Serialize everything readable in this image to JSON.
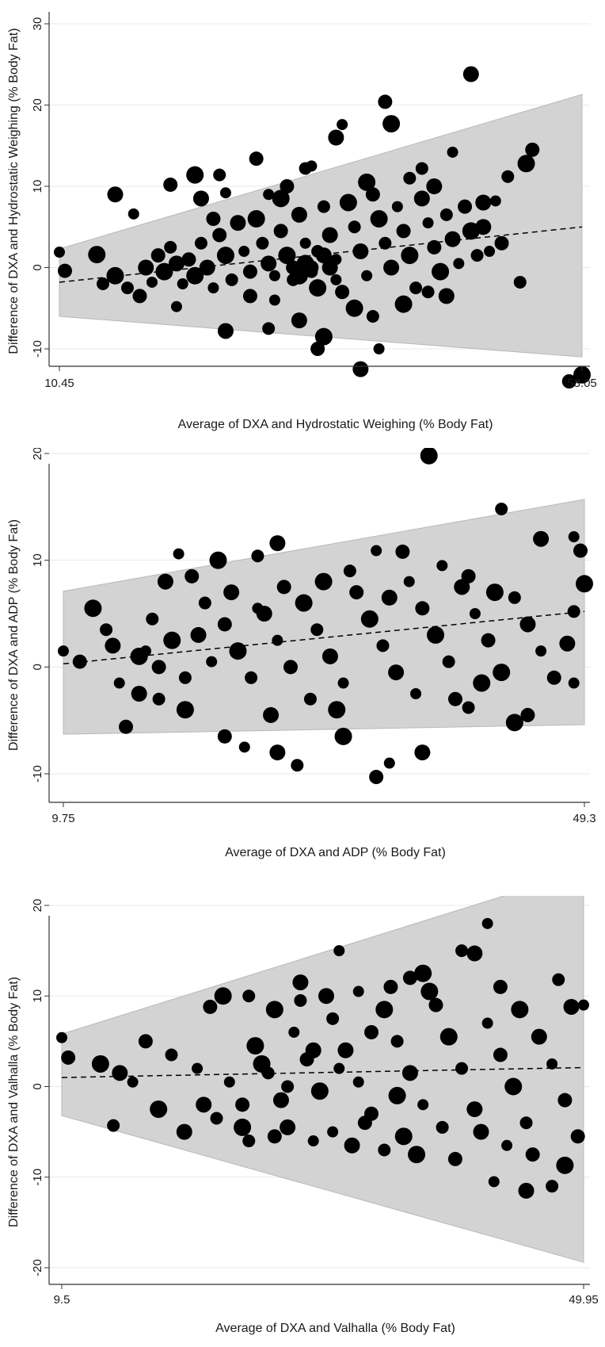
{
  "colors": {
    "band": "#d3d3d3",
    "point": "#000000",
    "axis": "#333333",
    "grid": "#eaeaea",
    "trend": "#000000"
  },
  "chart_data": [
    {
      "type": "scatter",
      "title": "",
      "xlabel": "Average of DXA and Hydrostatic Weighing (% Body Fat)",
      "ylabel": "Difference of DXA and Hydrostatic Weighing (% Body Fat)",
      "xlim": [
        10.45,
        53.05
      ],
      "ylim": [
        -15,
        30
      ],
      "x_ticks": [
        10.45,
        53.05
      ],
      "y_ticks": [
        30,
        20,
        10,
        0,
        -10
      ],
      "grid": true,
      "loa_band": {
        "x": [
          10.45,
          53.05
        ],
        "upper": [
          2.3,
          21.3
        ],
        "lower": [
          -6.0,
          -11.0
        ]
      },
      "trend_line": {
        "x": [
          10.45,
          53.05
        ],
        "y": [
          -1.8,
          5.0
        ]
      },
      "points": [
        [
          10.45,
          1.9
        ],
        [
          10.9,
          -0.4
        ],
        [
          13.5,
          1.6
        ],
        [
          14.0,
          -2.0
        ],
        [
          15.0,
          9.0
        ],
        [
          16.5,
          6.6
        ],
        [
          19.5,
          10.2
        ],
        [
          21.5,
          11.4
        ],
        [
          23.5,
          11.4
        ],
        [
          22.0,
          8.5
        ],
        [
          24.0,
          9.2
        ],
        [
          26.5,
          13.4
        ],
        [
          28.5,
          8.5
        ],
        [
          30.5,
          12.2
        ],
        [
          33.0,
          16.0
        ],
        [
          33.5,
          17.6
        ],
        [
          37.0,
          20.4
        ],
        [
          37.5,
          17.7
        ],
        [
          40.0,
          12.2
        ],
        [
          44.0,
          23.8
        ],
        [
          42.5,
          14.2
        ],
        [
          49.0,
          14.5
        ],
        [
          48.5,
          12.8
        ],
        [
          47.0,
          11.2
        ],
        [
          45.0,
          8.0
        ],
        [
          46.0,
          8.2
        ],
        [
          52.0,
          -14.0
        ],
        [
          53.05,
          -13.2
        ],
        [
          48.0,
          -1.8
        ],
        [
          35.0,
          -12.5
        ],
        [
          36.5,
          -10.0
        ],
        [
          31.5,
          -10.0
        ],
        [
          32.0,
          -8.5
        ],
        [
          27.5,
          -7.5
        ],
        [
          24.0,
          -7.8
        ],
        [
          20.0,
          -4.8
        ],
        [
          17.0,
          -3.5
        ],
        [
          15.0,
          -1.0
        ],
        [
          16.0,
          -2.5
        ],
        [
          17.5,
          0.0
        ],
        [
          18.0,
          -1.8
        ],
        [
          18.5,
          1.5
        ],
        [
          19.0,
          -0.5
        ],
        [
          19.5,
          2.5
        ],
        [
          20.0,
          0.5
        ],
        [
          20.5,
          -2.0
        ],
        [
          21.0,
          1.0
        ],
        [
          21.5,
          -1.0
        ],
        [
          22.0,
          3.0
        ],
        [
          22.5,
          0.0
        ],
        [
          23.0,
          -2.5
        ],
        [
          23.5,
          4.0
        ],
        [
          24.0,
          1.5
        ],
        [
          24.5,
          -1.5
        ],
        [
          25.0,
          5.5
        ],
        [
          25.5,
          2.0
        ],
        [
          26.0,
          -0.5
        ],
        [
          26.5,
          6.0
        ],
        [
          27.0,
          3.0
        ],
        [
          27.5,
          0.5
        ],
        [
          28.0,
          -1.0
        ],
        [
          28.5,
          4.5
        ],
        [
          29.0,
          1.5
        ],
        [
          29.5,
          -1.5
        ],
        [
          30.0,
          6.5
        ],
        [
          30.5,
          3.0
        ],
        [
          31.0,
          0.0
        ],
        [
          31.5,
          -2.5
        ],
        [
          32.0,
          7.5
        ],
        [
          32.5,
          4.0
        ],
        [
          33.0,
          1.0
        ],
        [
          33.5,
          -3.0
        ],
        [
          34.0,
          8.0
        ],
        [
          34.5,
          5.0
        ],
        [
          35.0,
          2.0
        ],
        [
          35.5,
          -1.0
        ],
        [
          36.0,
          9.0
        ],
        [
          36.5,
          6.0
        ],
        [
          37.0,
          3.0
        ],
        [
          37.5,
          0.0
        ],
        [
          38.0,
          7.5
        ],
        [
          38.5,
          4.5
        ],
        [
          39.0,
          1.5
        ],
        [
          39.5,
          -2.5
        ],
        [
          40.0,
          8.5
        ],
        [
          40.5,
          5.5
        ],
        [
          41.0,
          2.5
        ],
        [
          41.5,
          -0.5
        ],
        [
          42.0,
          6.5
        ],
        [
          42.5,
          3.5
        ],
        [
          43.0,
          0.5
        ],
        [
          43.5,
          7.5
        ],
        [
          44.0,
          4.5
        ],
        [
          44.5,
          1.5
        ],
        [
          45.0,
          5.0
        ],
        [
          45.5,
          2.0
        ],
        [
          46.5,
          3.0
        ],
        [
          34.5,
          -5.0
        ],
        [
          36.0,
          -6.0
        ],
        [
          30.0,
          -6.5
        ],
        [
          28.0,
          -4.0
        ],
        [
          26.0,
          -3.5
        ],
        [
          38.5,
          -4.5
        ],
        [
          40.5,
          -3.0
        ],
        [
          42.0,
          -3.5
        ],
        [
          31.0,
          12.5
        ],
        [
          29.0,
          10.0
        ],
        [
          35.5,
          10.5
        ],
        [
          39.0,
          11.0
        ],
        [
          41.0,
          10.0
        ],
        [
          27.5,
          9.0
        ],
        [
          23.0,
          6.0
        ],
        [
          30.5,
          0.5
        ],
        [
          31.5,
          2.0
        ],
        [
          32.5,
          0.0
        ],
        [
          33.0,
          -1.5
        ],
        [
          29.5,
          0.0
        ],
        [
          30.0,
          -1.0
        ],
        [
          31.0,
          -0.5
        ],
        [
          32.0,
          1.5
        ]
      ]
    },
    {
      "type": "scatter",
      "title": "",
      "xlabel": "Average of DXA and ADP (% Body Fat)",
      "ylabel": "Difference of DXA and ADP (% Body Fat)",
      "xlim": [
        9.75,
        49.3
      ],
      "ylim": [
        -11,
        21
      ],
      "x_ticks": [
        9.75,
        49.3
      ],
      "y_ticks": [
        20,
        10,
        0,
        -10
      ],
      "grid": true,
      "loa_band": {
        "x": [
          9.75,
          49.3
        ],
        "upper": [
          7.1,
          15.7
        ],
        "lower": [
          -6.3,
          -5.4
        ]
      },
      "trend_line": {
        "x": [
          9.75,
          49.3
        ],
        "y": [
          0.3,
          5.2
        ]
      },
      "points": [
        [
          9.75,
          1.5
        ],
        [
          11.0,
          0.5
        ],
        [
          12.0,
          5.5
        ],
        [
          13.0,
          3.5
        ],
        [
          13.5,
          2.0
        ],
        [
          14.0,
          -1.5
        ],
        [
          14.5,
          -5.6
        ],
        [
          15.5,
          1.0
        ],
        [
          16.5,
          4.5
        ],
        [
          17.5,
          8.0
        ],
        [
          18.5,
          10.6
        ],
        [
          19.5,
          8.5
        ],
        [
          21.5,
          10.0
        ],
        [
          24.5,
          10.4
        ],
        [
          26.0,
          11.6
        ],
        [
          33.5,
          10.9
        ],
        [
          35.5,
          10.8
        ],
        [
          37.5,
          19.8
        ],
        [
          43.0,
          14.8
        ],
        [
          46.0,
          12.0
        ],
        [
          48.5,
          12.2
        ],
        [
          49.0,
          10.9
        ],
        [
          49.3,
          7.8
        ],
        [
          48.5,
          5.2
        ],
        [
          48.0,
          2.2
        ],
        [
          48.5,
          -1.5
        ],
        [
          45.0,
          -4.5
        ],
        [
          44.0,
          -5.2
        ],
        [
          40.5,
          -3.8
        ],
        [
          37.0,
          -8.0
        ],
        [
          34.5,
          -9.0
        ],
        [
          33.5,
          -10.3
        ],
        [
          31.0,
          -6.5
        ],
        [
          27.5,
          -9.2
        ],
        [
          26.0,
          -8.0
        ],
        [
          23.5,
          -7.5
        ],
        [
          22.0,
          -6.5
        ],
        [
          19.0,
          -4.0
        ],
        [
          17.0,
          -3.0
        ],
        [
          15.5,
          -2.5
        ],
        [
          16.0,
          1.5
        ],
        [
          17.0,
          0.0
        ],
        [
          18.0,
          2.5
        ],
        [
          19.0,
          -1.0
        ],
        [
          20.0,
          3.0
        ],
        [
          21.0,
          0.5
        ],
        [
          22.0,
          4.0
        ],
        [
          23.0,
          1.5
        ],
        [
          24.0,
          -1.0
        ],
        [
          25.0,
          5.0
        ],
        [
          26.0,
          2.5
        ],
        [
          27.0,
          0.0
        ],
        [
          28.0,
          6.0
        ],
        [
          29.0,
          3.5
        ],
        [
          30.0,
          1.0
        ],
        [
          31.0,
          -1.5
        ],
        [
          32.0,
          7.0
        ],
        [
          33.0,
          4.5
        ],
        [
          34.0,
          2.0
        ],
        [
          35.0,
          -0.5
        ],
        [
          36.0,
          8.0
        ],
        [
          37.0,
          5.5
        ],
        [
          38.0,
          3.0
        ],
        [
          39.0,
          0.5
        ],
        [
          40.0,
          7.5
        ],
        [
          41.0,
          5.0
        ],
        [
          42.0,
          2.5
        ],
        [
          43.0,
          -0.5
        ],
        [
          44.0,
          6.5
        ],
        [
          45.0,
          4.0
        ],
        [
          46.0,
          1.5
        ],
        [
          47.0,
          -1.0
        ],
        [
          30.5,
          -4.0
        ],
        [
          28.5,
          -3.0
        ],
        [
          25.5,
          -4.5
        ],
        [
          36.5,
          -2.5
        ],
        [
          39.5,
          -3.0
        ],
        [
          41.5,
          -1.5
        ],
        [
          20.5,
          6.0
        ],
        [
          22.5,
          7.0
        ],
        [
          24.5,
          5.5
        ],
        [
          26.5,
          7.5
        ],
        [
          29.5,
          8.0
        ],
        [
          31.5,
          9.0
        ],
        [
          34.5,
          6.5
        ],
        [
          38.5,
          9.5
        ],
        [
          40.5,
          8.5
        ],
        [
          42.5,
          7.0
        ]
      ]
    },
    {
      "type": "scatter",
      "title": "",
      "xlabel": "Average of DXA and Valhalla (% Body Fat)",
      "ylabel": "Difference of DXA and Valhalla (% Body Fat)",
      "xlim": [
        9.5,
        49.95
      ],
      "ylim": [
        -21,
        25
      ],
      "x_ticks": [
        9.5,
        49.95
      ],
      "y_ticks": [
        20,
        10,
        0,
        -10,
        -20
      ],
      "grid": true,
      "loa_band": {
        "x": [
          9.5,
          49.95
        ],
        "upper": [
          5.8,
          23.8
        ],
        "lower": [
          -3.2,
          -19.4
        ]
      },
      "trend_line": {
        "x": [
          9.5,
          49.95
        ],
        "y": [
          1.0,
          2.1
        ]
      },
      "points": [
        [
          9.5,
          5.4
        ],
        [
          10.0,
          3.2
        ],
        [
          12.5,
          2.5
        ],
        [
          13.5,
          -4.3
        ],
        [
          14.0,
          1.5
        ],
        [
          15.0,
          0.5
        ],
        [
          16.0,
          5.0
        ],
        [
          17.0,
          -2.5
        ],
        [
          18.0,
          3.5
        ],
        [
          19.0,
          -5.0
        ],
        [
          20.0,
          2.0
        ],
        [
          21.0,
          8.8
        ],
        [
          22.0,
          10.0
        ],
        [
          24.0,
          10.0
        ],
        [
          28.0,
          11.5
        ],
        [
          31.0,
          15.0
        ],
        [
          36.5,
          12.0
        ],
        [
          37.5,
          12.5
        ],
        [
          40.5,
          15.0
        ],
        [
          41.5,
          14.7
        ],
        [
          42.5,
          18.0
        ],
        [
          43.5,
          11.0
        ],
        [
          45.0,
          8.5
        ],
        [
          48.0,
          11.8
        ],
        [
          49.0,
          8.8
        ],
        [
          49.95,
          9.0
        ],
        [
          49.5,
          -5.5
        ],
        [
          48.5,
          -8.7
        ],
        [
          47.5,
          -11.0
        ],
        [
          45.5,
          -11.5
        ],
        [
          43.0,
          -10.5
        ],
        [
          40.0,
          -8.0
        ],
        [
          37.0,
          -7.5
        ],
        [
          34.5,
          -7.0
        ],
        [
          32.0,
          -6.5
        ],
        [
          29.0,
          -6.0
        ],
        [
          26.0,
          -5.5
        ],
        [
          23.5,
          -4.5
        ],
        [
          21.5,
          -3.5
        ],
        [
          20.5,
          -2.0
        ],
        [
          22.5,
          0.5
        ],
        [
          23.5,
          -2.0
        ],
        [
          24.5,
          4.5
        ],
        [
          25.5,
          1.5
        ],
        [
          26.5,
          -1.5
        ],
        [
          27.5,
          6.0
        ],
        [
          28.5,
          3.0
        ],
        [
          29.5,
          -0.5
        ],
        [
          30.5,
          7.5
        ],
        [
          31.5,
          4.0
        ],
        [
          32.5,
          0.5
        ],
        [
          33.5,
          -3.0
        ],
        [
          34.5,
          8.5
        ],
        [
          35.5,
          5.0
        ],
        [
          36.5,
          1.5
        ],
        [
          37.5,
          -2.0
        ],
        [
          38.5,
          9.0
        ],
        [
          39.5,
          5.5
        ],
        [
          40.5,
          2.0
        ],
        [
          41.5,
          -2.5
        ],
        [
          42.5,
          7.0
        ],
        [
          43.5,
          3.5
        ],
        [
          44.5,
          0.0
        ],
        [
          45.5,
          -4.0
        ],
        [
          46.5,
          5.5
        ],
        [
          47.5,
          2.5
        ],
        [
          48.5,
          -1.5
        ],
        [
          26.0,
          8.5
        ],
        [
          28.0,
          9.5
        ],
        [
          30.0,
          10.0
        ],
        [
          32.5,
          10.5
        ],
        [
          35.0,
          11.0
        ],
        [
          38.0,
          10.5
        ],
        [
          24.0,
          -6.0
        ],
        [
          27.0,
          -4.5
        ],
        [
          30.5,
          -5.0
        ],
        [
          33.0,
          -4.0
        ],
        [
          36.0,
          -5.5
        ],
        [
          39.0,
          -4.5
        ],
        [
          42.0,
          -5.0
        ],
        [
          44.0,
          -6.5
        ],
        [
          46.0,
          -7.5
        ],
        [
          25.0,
          2.5
        ],
        [
          27.0,
          0.0
        ],
        [
          29.0,
          4.0
        ],
        [
          31.0,
          2.0
        ],
        [
          33.5,
          6.0
        ],
        [
          35.5,
          -1.0
        ]
      ]
    }
  ]
}
